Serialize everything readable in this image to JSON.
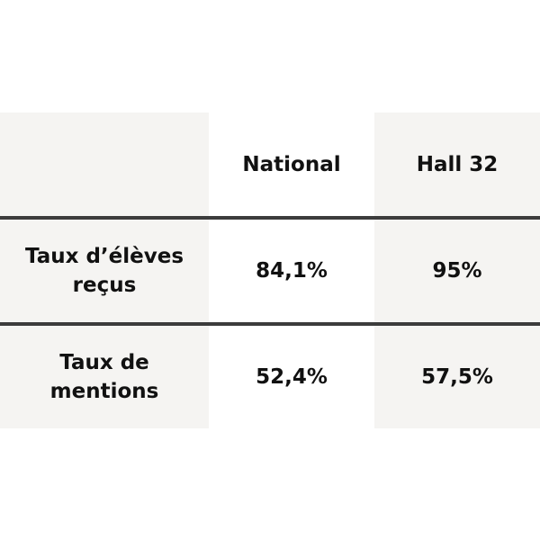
{
  "table": {
    "columns": [
      "National",
      "Hall 32"
    ],
    "rows": [
      {
        "label": "Taux d’élèves reçus",
        "values": [
          "84,1%",
          "95%"
        ]
      },
      {
        "label": "Taux de mentions",
        "values": [
          "52,4%",
          "57,5%"
        ]
      }
    ]
  }
}
